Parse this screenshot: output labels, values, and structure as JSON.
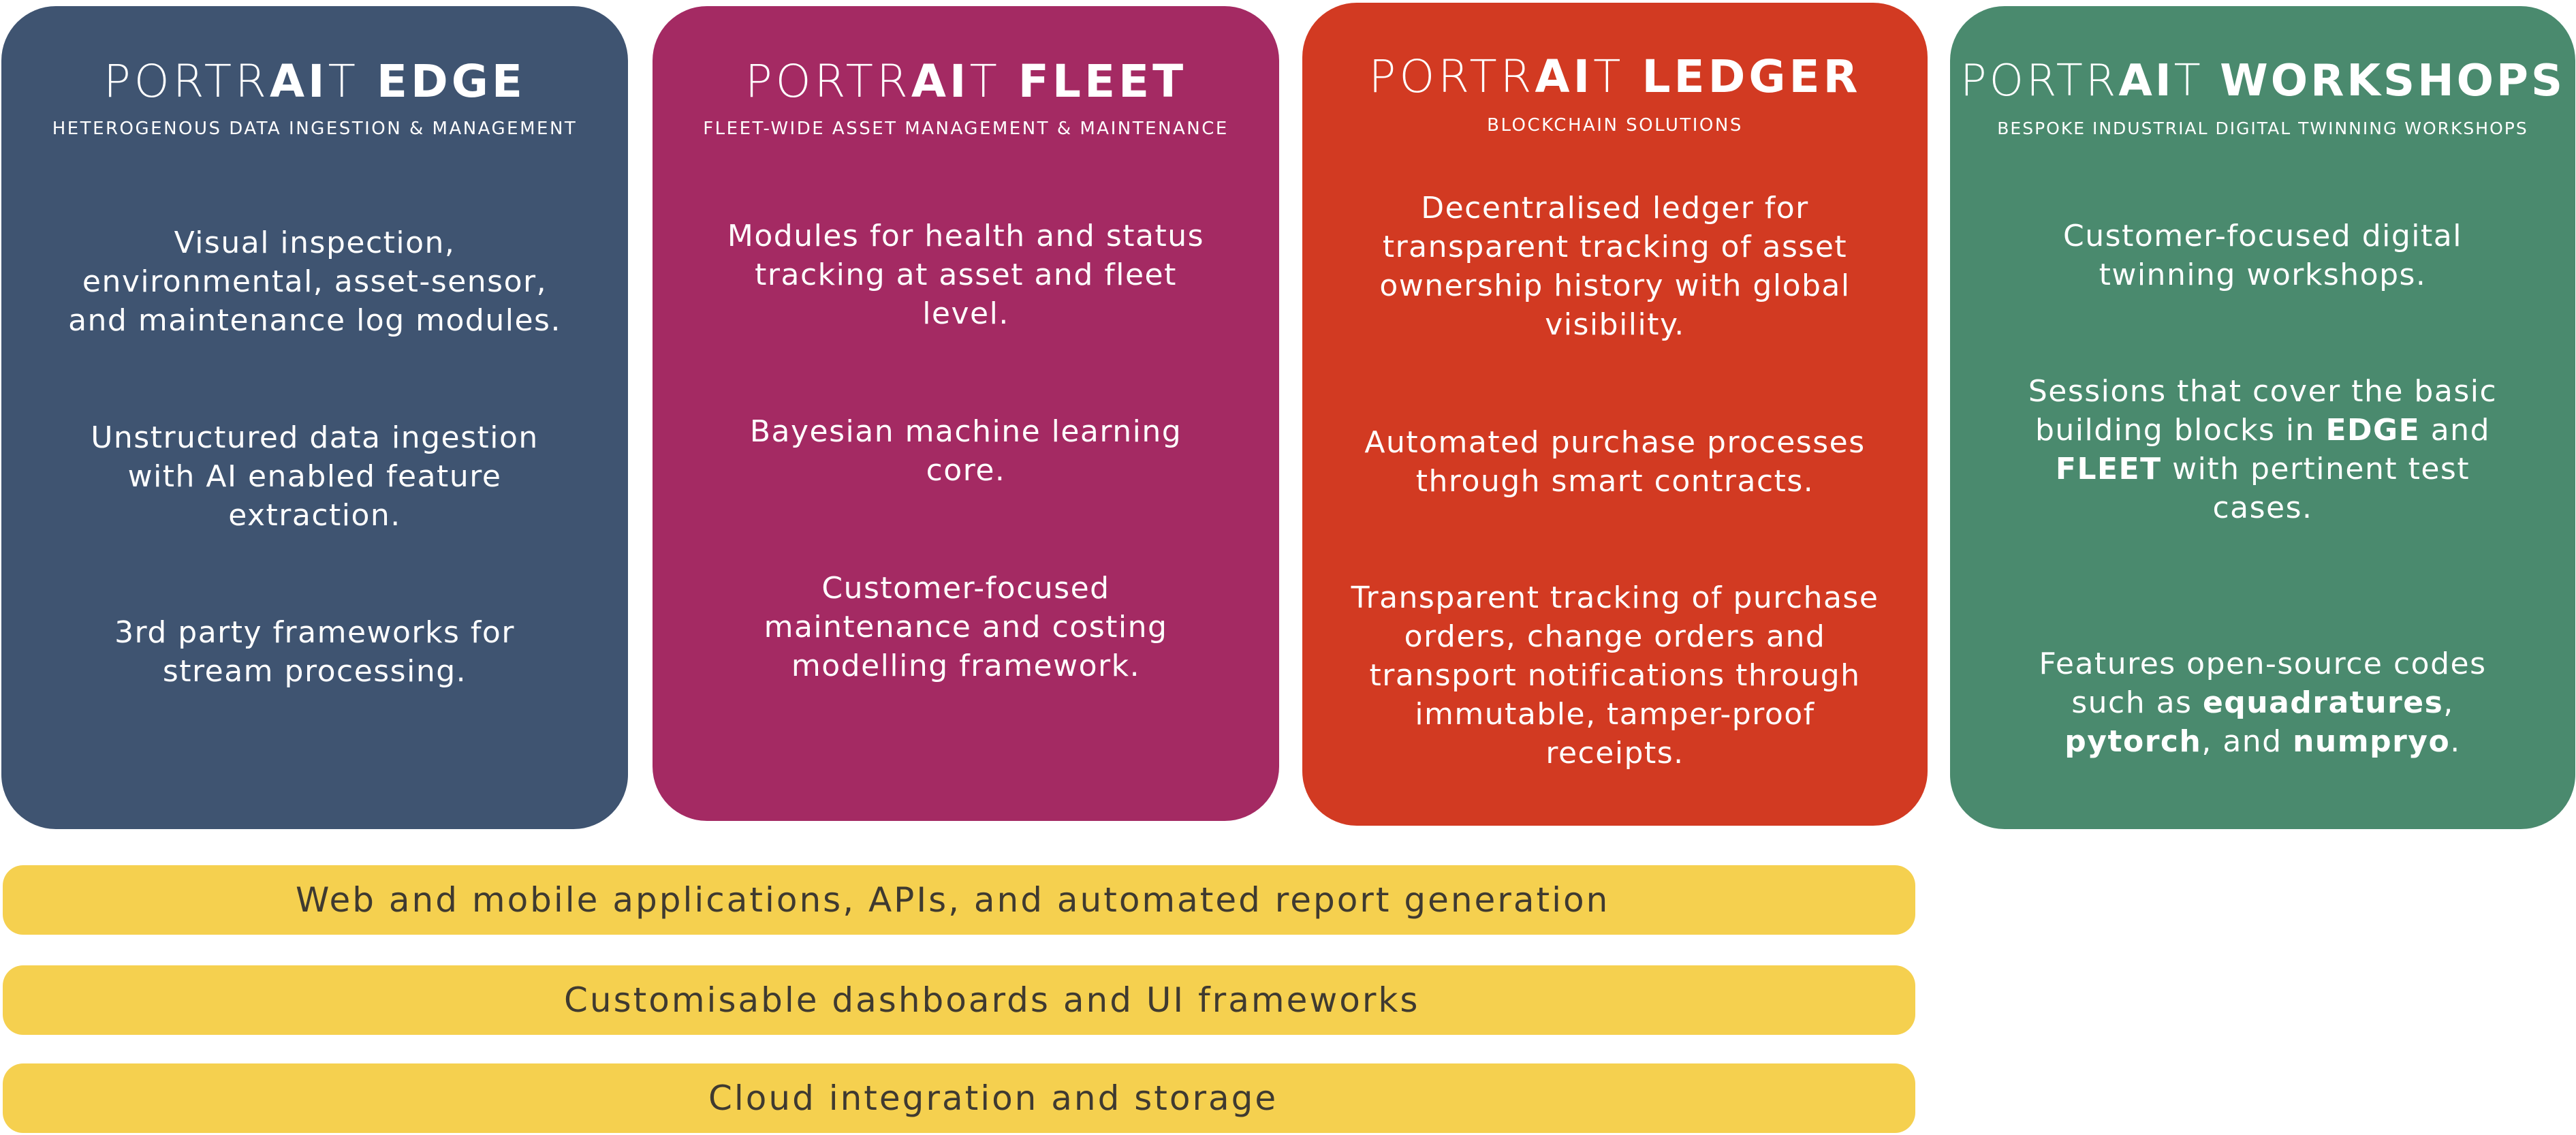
{
  "colors": {
    "edge": "#3f5471",
    "fleet": "#a42a63",
    "ledger": "#d23a22",
    "workshops": "#4a8a6e",
    "bars": "#f5d04f"
  },
  "cards": {
    "edge": {
      "title_light": "PORTR",
      "title_bold_ai": "AI",
      "title_light_t": "T",
      "title_name": "EDGE",
      "subtitle": "HETEROGENOUS DATA INGESTION & MANAGEMENT",
      "p1": "Visual inspection, environmental, asset-sensor, and maintenance log modules.",
      "p2": "Unstructured data ingestion with AI enabled feature extraction.",
      "p3": "3rd party frameworks for stream processing."
    },
    "fleet": {
      "title_light": "PORTR",
      "title_bold_ai": "AI",
      "title_light_t": "T",
      "title_name": "FLEET",
      "subtitle": "FLEET-WIDE ASSET MANAGEMENT & MAINTENANCE",
      "p1": "Modules for health and status tracking at asset and fleet level.",
      "p2": "Bayesian machine learning core.",
      "p3": "Customer-focused maintenance and costing modelling framework."
    },
    "ledger": {
      "title_light": "PORTR",
      "title_bold_ai": "AI",
      "title_light_t": "T",
      "title_name": "LEDGER",
      "subtitle": "BLOCKCHAIN SOLUTIONS",
      "p1": "Decentralised ledger for transparent tracking of asset ownership history with global visibility.",
      "p2": "Automated purchase processes through smart contracts.",
      "p3": "Transparent tracking of purchase orders, change orders and transport notifications through immutable, tamper-proof receipts."
    },
    "workshops": {
      "title_light": "PORTR",
      "title_bold_ai": "AI",
      "title_light_t": "T",
      "title_name": "WORKSHOPS",
      "subtitle": "BESPOKE INDUSTRIAL DIGITAL TWINNING WORKSHOPS",
      "p1": "Customer-focused digital twinning workshops.",
      "p2_a": "Sessions that cover the basic building blocks in ",
      "p2_b": "EDGE",
      "p2_c": " and ",
      "p2_d": "FLEET",
      "p2_e": " with pertinent test cases.",
      "p3_a": "Features open-source codes such as ",
      "p3_b": "equadratures",
      "p3_c": ", ",
      "p3_d": "pytorch",
      "p3_e": ", and ",
      "p3_f": "numpryo",
      "p3_g": "."
    }
  },
  "bars": {
    "b1": "Web and mobile applications, APIs, and automated report generation",
    "b2": "Customisable dashboards and UI frameworks",
    "b3": "Cloud integration and storage"
  }
}
